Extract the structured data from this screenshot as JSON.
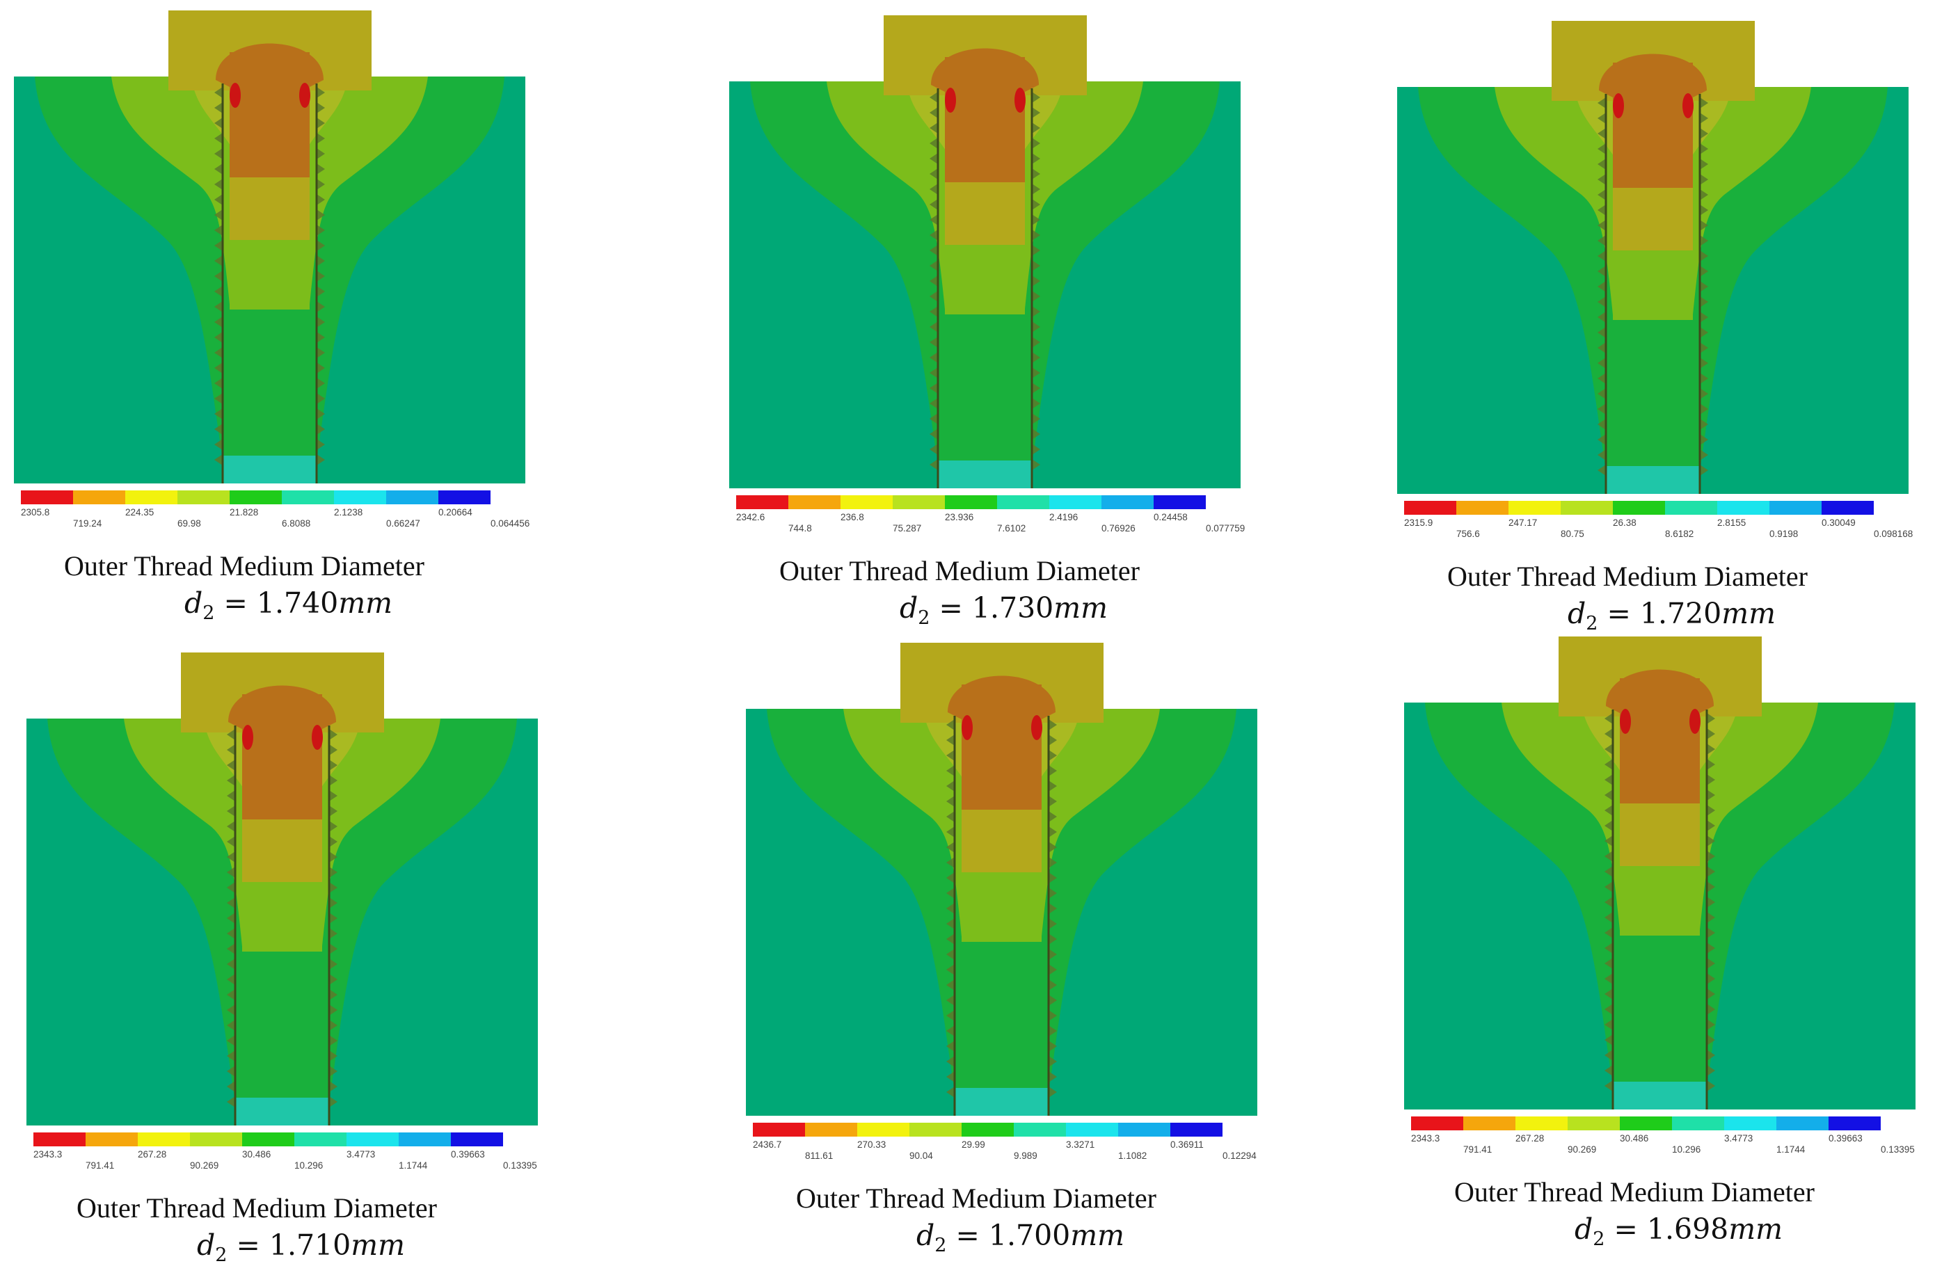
{
  "figure": {
    "caption_title": "Outer Thread Medium Diameter",
    "caption_symbol": "d",
    "caption_subscript": "2",
    "caption_equals": " = ",
    "caption_unit": "mm"
  },
  "legend_colors": [
    "#e8141a",
    "#f5a60c",
    "#f2f20e",
    "#b8e21f",
    "#1fcc1a",
    "#1fe0a8",
    "#1be4ec",
    "#13aeea",
    "#1310e4"
  ],
  "contour_colors": {
    "block_background": "#00a876",
    "outer_band": "#19b03c",
    "mid_band": "#7cbd1b",
    "inner_band": "#a9ba22",
    "head": "#b4a81c",
    "core": "#b8701a",
    "hotspot": "#cc1414"
  },
  "panels": [
    {
      "value": "1.740",
      "legend_top": [
        "2305.8",
        "224.35",
        "21.828",
        "2.1238",
        "0.20664"
      ],
      "legend_bottom": [
        "719.24",
        "69.98",
        "6.8088",
        "0.66247",
        "0.064456"
      ]
    },
    {
      "value": "1.730",
      "legend_top": [
        "2342.6",
        "236.8",
        "23.936",
        "2.4196",
        "0.24458"
      ],
      "legend_bottom": [
        "744.8",
        "75.287",
        "7.6102",
        "0.76926",
        "0.077759"
      ]
    },
    {
      "value": "1.720",
      "legend_top": [
        "2315.9",
        "247.17",
        "26.38",
        "2.8155",
        "0.30049"
      ],
      "legend_bottom": [
        "756.6",
        "80.75",
        "8.6182",
        "0.9198",
        "0.098168"
      ]
    },
    {
      "value": "1.710",
      "legend_top": [
        "2343.3",
        "267.28",
        "30.486",
        "3.4773",
        "0.39663"
      ],
      "legend_bottom": [
        "791.41",
        "90.269",
        "10.296",
        "1.1744",
        "0.13395"
      ]
    },
    {
      "value": "1.700",
      "legend_top": [
        "2436.7",
        "270.33",
        "29.99",
        "3.3271",
        "0.36911"
      ],
      "legend_bottom": [
        "811.61",
        "90.04",
        "9.989",
        "1.1082",
        "0.12294"
      ]
    },
    {
      "value": "1.698",
      "legend_top": [
        "2343.3",
        "267.28",
        "30.486",
        "3.4773",
        "0.39663"
      ],
      "legend_bottom": [
        "791.41",
        "90.269",
        "10.296",
        "1.1744",
        "0.13395"
      ]
    }
  ]
}
